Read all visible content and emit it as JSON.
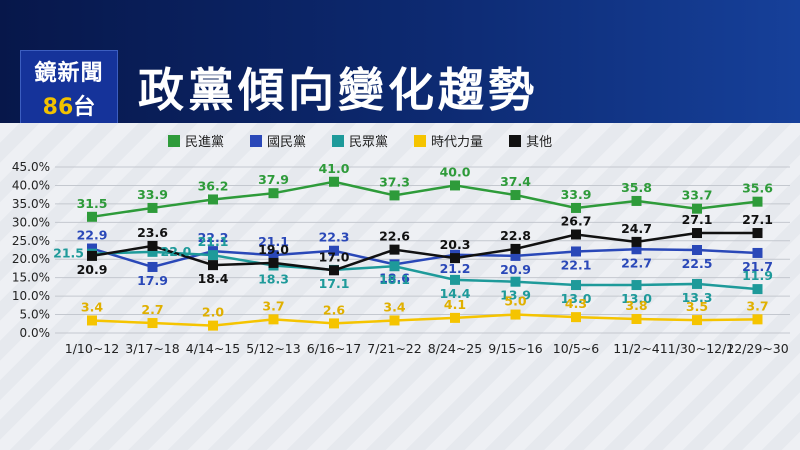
{
  "header": {
    "logo_top": "鏡新聞",
    "logo_num": "86",
    "logo_suffix": "台",
    "title": "政黨傾向變化趨勢"
  },
  "chart_data": {
    "type": "line",
    "title": "政黨傾向變化趨勢",
    "xlabel": "",
    "ylabel": "",
    "ylim": [
      0,
      45
    ],
    "yticks": [
      "0.0%",
      "5.0%",
      "10.0%",
      "15.0%",
      "20.0%",
      "25.0%",
      "30.0%",
      "35.0%",
      "40.0%",
      "45.0%"
    ],
    "categories": [
      "1/10~12",
      "3/17~18",
      "4/14~15",
      "5/12~13",
      "6/16~17",
      "7/21~22",
      "8/24~25",
      "9/15~16",
      "10/5~6",
      "11/2~4",
      "11/30~12/2",
      "12/29~30"
    ],
    "series": [
      {
        "name": "民進黨",
        "color": "#2e9b3a",
        "label_color": "#2e9b3a",
        "values": [
          31.5,
          33.9,
          36.2,
          37.9,
          41.0,
          37.3,
          40.0,
          37.4,
          33.9,
          35.8,
          33.7,
          35.6
        ],
        "label_pos": [
          "above",
          "above",
          "above",
          "above",
          "above",
          "above",
          "above",
          "above",
          "above",
          "above",
          "above",
          "above"
        ]
      },
      {
        "name": "國民黨",
        "color": "#2a48b8",
        "label_color": "#2a48b8",
        "values": [
          22.9,
          17.9,
          22.2,
          21.1,
          22.3,
          18.6,
          21.2,
          20.9,
          22.1,
          22.7,
          22.5,
          21.7
        ],
        "label_pos": [
          "above",
          "below",
          "above",
          "above",
          "above",
          "below",
          "below",
          "below",
          "below",
          "below",
          "below",
          "below"
        ]
      },
      {
        "name": "民眾黨",
        "color": "#1e9a9a",
        "label_color": "#1e9a9a",
        "values": [
          21.5,
          22.0,
          21.1,
          18.3,
          17.1,
          18.1,
          14.4,
          13.9,
          13.0,
          13.0,
          13.3,
          11.9
        ],
        "label_pos": [
          "left",
          "right",
          "above",
          "below",
          "below",
          "below",
          "below",
          "below",
          "below",
          "below",
          "below",
          "above"
        ]
      },
      {
        "name": "時代力量",
        "color": "#f5c400",
        "label_color": "#e0b000",
        "values": [
          3.4,
          2.7,
          2.0,
          3.7,
          2.6,
          3.4,
          4.1,
          5.0,
          4.3,
          3.8,
          3.5,
          3.7
        ],
        "label_pos": [
          "above",
          "above",
          "above",
          "above",
          "above",
          "above",
          "above",
          "above",
          "above",
          "above",
          "above",
          "above"
        ]
      },
      {
        "name": "其他",
        "color": "#111111",
        "label_color": "#111111",
        "values": [
          20.9,
          23.6,
          18.4,
          19.0,
          17.0,
          22.6,
          20.3,
          22.8,
          26.7,
          24.7,
          27.1,
          27.1
        ],
        "label_pos": [
          "below",
          "above",
          "below",
          "above",
          "above",
          "above",
          "above",
          "above",
          "above",
          "above",
          "above",
          "above"
        ]
      }
    ]
  }
}
